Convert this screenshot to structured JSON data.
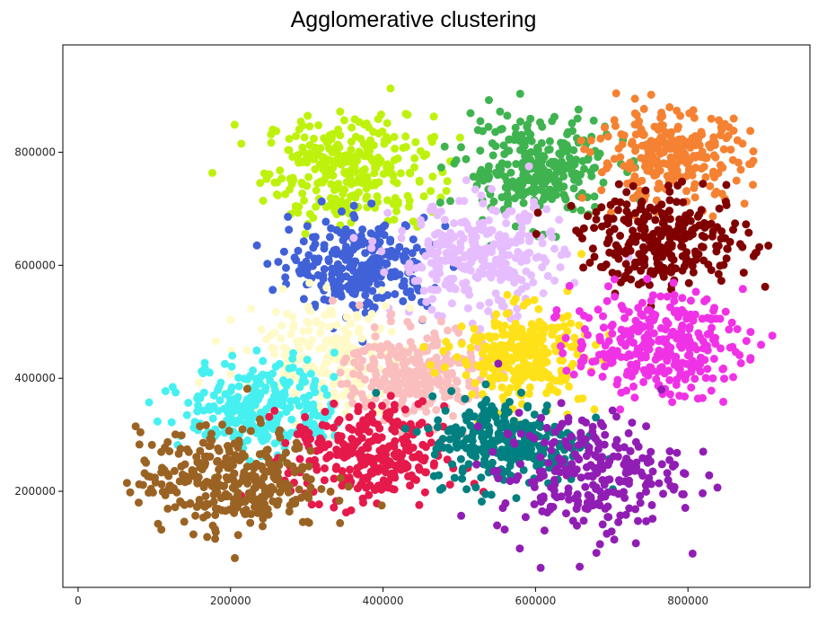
{
  "chart_data": {
    "type": "scatter",
    "title": "Agglomerative clustering",
    "xlabel": "",
    "ylabel": "",
    "xlim": [
      -20000,
      960000
    ],
    "ylim": [
      30000,
      990000
    ],
    "grid": false,
    "legend": "none",
    "x_ticks": [
      0,
      200000,
      400000,
      600000,
      800000
    ],
    "x_tick_labels": [
      "0",
      "200000",
      "400000",
      "600000",
      "800000"
    ],
    "y_ticks": [
      200000,
      400000,
      600000,
      800000
    ],
    "y_tick_labels": [
      "200000",
      "400000",
      "600000",
      "800000"
    ],
    "clusters": [
      {
        "color": "#bef20d",
        "center": [
          355000,
          770000
        ],
        "spread": [
          55000,
          48000
        ],
        "n": 300
      },
      {
        "color": "#3fb34f",
        "center": [
          600000,
          770000
        ],
        "spread": [
          50000,
          45000
        ],
        "n": 290
      },
      {
        "color": "#f58232",
        "center": [
          780000,
          790000
        ],
        "spread": [
          50000,
          40000
        ],
        "n": 270
      },
      {
        "color": "#4161d8",
        "center": [
          370000,
          600000
        ],
        "spread": [
          45000,
          40000
        ],
        "n": 280
      },
      {
        "color": "#e6beff",
        "center": [
          525000,
          610000
        ],
        "spread": [
          55000,
          50000
        ],
        "n": 300
      },
      {
        "color": "#800000",
        "center": [
          770000,
          645000
        ],
        "spread": [
          55000,
          40000
        ],
        "n": 280
      },
      {
        "color": "#fffac8",
        "center": [
          330000,
          440000
        ],
        "spread": [
          55000,
          50000
        ],
        "n": 220
      },
      {
        "color": "#fabebe",
        "center": [
          440000,
          410000
        ],
        "spread": [
          45000,
          40000
        ],
        "n": 280
      },
      {
        "color": "#ffe119",
        "center": [
          580000,
          440000
        ],
        "spread": [
          42000,
          42000
        ],
        "n": 290
      },
      {
        "color": "#f032e6",
        "center": [
          760000,
          460000
        ],
        "spread": [
          55000,
          45000
        ],
        "n": 300
      },
      {
        "color": "#46f0f0",
        "center": [
          240000,
          350000
        ],
        "spread": [
          50000,
          40000
        ],
        "n": 280
      },
      {
        "color": "#e6194b",
        "center": [
          380000,
          260000
        ],
        "spread": [
          50000,
          45000
        ],
        "n": 300
      },
      {
        "color": "#008080",
        "center": [
          560000,
          290000
        ],
        "spread": [
          50000,
          40000
        ],
        "n": 280
      },
      {
        "color": "#911eb4",
        "center": [
          670000,
          230000
        ],
        "spread": [
          60000,
          55000
        ],
        "n": 260
      },
      {
        "color": "#9a6324",
        "center": [
          200000,
          220000
        ],
        "spread": [
          60000,
          45000
        ],
        "n": 330
      }
    ]
  }
}
